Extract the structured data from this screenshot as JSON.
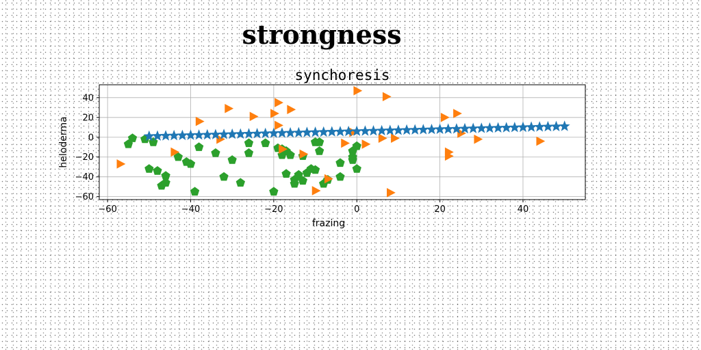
{
  "suptitle": "strongness",
  "chart_data": {
    "type": "scatter",
    "title": "synchoresis",
    "xlabel": "frazing",
    "ylabel": "heloderma",
    "xlim": [
      -62,
      55
    ],
    "ylim": [
      -63,
      53
    ],
    "xticks": [
      -60,
      -40,
      -20,
      0,
      20,
      40
    ],
    "yticks": [
      -60,
      -40,
      -20,
      0,
      20,
      40
    ],
    "grid": true,
    "series": [
      {
        "marker": "star",
        "color": "#1f77b4",
        "line": {
          "from": [
            -50,
            1
          ],
          "to": [
            50,
            11
          ],
          "count": 51
        }
      },
      {
        "marker": "triangle-right",
        "color": "#ff7f0e",
        "points": [
          [
            -57,
            -27
          ],
          [
            -44,
            -15
          ],
          [
            -38,
            16
          ],
          [
            -33,
            -2
          ],
          [
            -31,
            29
          ],
          [
            -25,
            21
          ],
          [
            -20,
            24
          ],
          [
            -19,
            35
          ],
          [
            -19,
            12
          ],
          [
            -16,
            28
          ],
          [
            -18,
            -12
          ],
          [
            -13,
            -17
          ],
          [
            -10,
            -54
          ],
          [
            -7,
            -42
          ],
          [
            -3,
            -6
          ],
          [
            -1,
            5
          ],
          [
            0,
            47
          ],
          [
            2,
            -7
          ],
          [
            6,
            -1
          ],
          [
            7,
            41
          ],
          [
            8,
            -56
          ],
          [
            9,
            -1
          ],
          [
            21,
            20
          ],
          [
            22,
            -15
          ],
          [
            22,
            -19
          ],
          [
            24,
            24
          ],
          [
            25,
            4
          ],
          [
            29,
            -2
          ],
          [
            44,
            -4
          ]
        ]
      },
      {
        "marker": "pentagon",
        "color": "#2ca02c",
        "points": [
          [
            -55,
            -7
          ],
          [
            -54,
            -1
          ],
          [
            -51,
            -2
          ],
          [
            -49,
            -5
          ],
          [
            -50,
            -32
          ],
          [
            -48,
            -34
          ],
          [
            -46,
            -39
          ],
          [
            -47,
            -49
          ],
          [
            -46,
            -46
          ],
          [
            -43,
            -20
          ],
          [
            -41,
            -25
          ],
          [
            -40,
            -27
          ],
          [
            -38,
            -10
          ],
          [
            -39,
            -55
          ],
          [
            -34,
            -16
          ],
          [
            -32,
            -40
          ],
          [
            -30,
            -23
          ],
          [
            -28,
            -46
          ],
          [
            -26,
            -6
          ],
          [
            -26,
            -16
          ],
          [
            -22,
            -6
          ],
          [
            -20,
            -55
          ],
          [
            -19,
            -11
          ],
          [
            -18,
            -12
          ],
          [
            -18,
            -18
          ],
          [
            -17,
            -14
          ],
          [
            -17,
            -37
          ],
          [
            -16,
            -18
          ],
          [
            -15,
            -43
          ],
          [
            -15,
            -47
          ],
          [
            -14,
            -38
          ],
          [
            -13,
            -19
          ],
          [
            -13,
            -44
          ],
          [
            -12,
            -36
          ],
          [
            -11,
            -32
          ],
          [
            -10,
            -33
          ],
          [
            -10,
            -5
          ],
          [
            -9,
            -5
          ],
          [
            -9,
            -14
          ],
          [
            -8,
            -47
          ],
          [
            -7,
            -43
          ],
          [
            -4,
            -26
          ],
          [
            -4,
            -40
          ],
          [
            -1,
            -14
          ],
          [
            -1,
            -20
          ],
          [
            -1,
            -23
          ],
          [
            0,
            -32
          ],
          [
            0,
            -9
          ]
        ]
      }
    ]
  }
}
